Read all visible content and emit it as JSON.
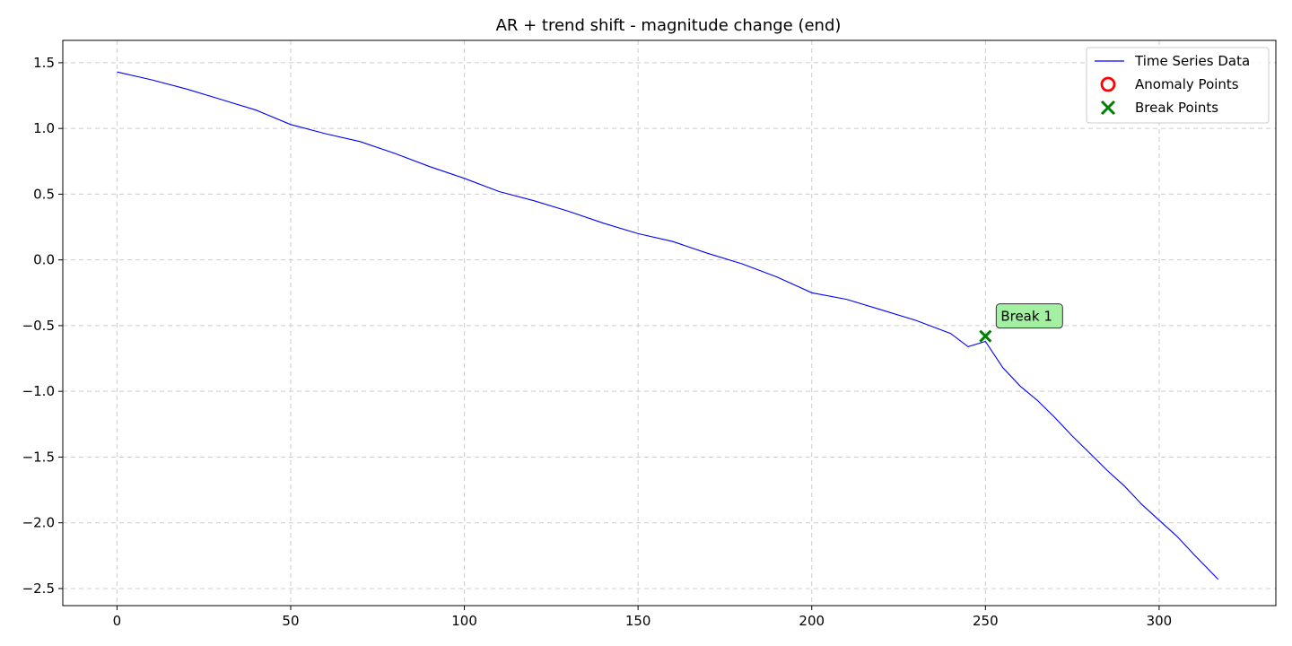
{
  "chart_data": {
    "type": "line",
    "title": "AR + trend shift - magnitude change (end)",
    "xlabel": "",
    "ylabel": "",
    "xlim": [
      -15.6,
      333.6
    ],
    "ylim": [
      -2.63,
      1.67
    ],
    "xticks": [
      0,
      50,
      100,
      150,
      200,
      250,
      300
    ],
    "yticks": [
      1.5,
      1.0,
      0.5,
      0.0,
      -0.5,
      -1.0,
      -1.5,
      -2.0,
      -2.5
    ],
    "xtick_labels": [
      "0",
      "50",
      "100",
      "150",
      "200",
      "250",
      "300"
    ],
    "ytick_labels": [
      "1.5",
      "1.0",
      "0.5",
      "0.0",
      "−0.5",
      "−1.0",
      "−1.5",
      "−2.0",
      "−2.5"
    ],
    "grid": true,
    "legend_position": "upper-right",
    "legend": [
      {
        "label": "Time Series Data",
        "kind": "line",
        "color": "#0000ff"
      },
      {
        "label": "Anomaly Points",
        "kind": "circle",
        "color": "#ff0000"
      },
      {
        "label": "Break Points",
        "kind": "x",
        "color": "#008000"
      }
    ],
    "series": [
      {
        "name": "Time Series Data",
        "color": "#0000ff",
        "x": [
          0,
          10,
          20,
          30,
          40,
          50,
          60,
          70,
          80,
          90,
          100,
          110,
          120,
          130,
          140,
          150,
          160,
          170,
          180,
          190,
          200,
          210,
          220,
          230,
          240,
          245,
          250,
          255,
          260,
          265,
          270,
          275,
          280,
          285,
          290,
          295,
          300,
          305,
          310,
          317
        ],
        "y": [
          1.43,
          1.37,
          1.3,
          1.22,
          1.14,
          1.03,
          0.96,
          0.9,
          0.81,
          0.71,
          0.62,
          0.52,
          0.45,
          0.37,
          0.28,
          0.2,
          0.14,
          0.05,
          -0.03,
          -0.13,
          -0.25,
          -0.3,
          -0.38,
          -0.46,
          -0.56,
          -0.66,
          -0.62,
          -0.82,
          -0.96,
          -1.07,
          -1.2,
          -1.34,
          -1.47,
          -1.6,
          -1.72,
          -1.86,
          -1.98,
          -2.1,
          -2.24,
          -2.43
        ]
      }
    ],
    "anomaly_points": [],
    "break_points": [
      {
        "x": 250,
        "y": -0.58,
        "label": "Break 1"
      }
    ],
    "colors": {
      "line": "#0000ff",
      "break_marker": "#008000",
      "annotation_fill": "#a3f0a3",
      "grid": "#cccccc"
    }
  }
}
